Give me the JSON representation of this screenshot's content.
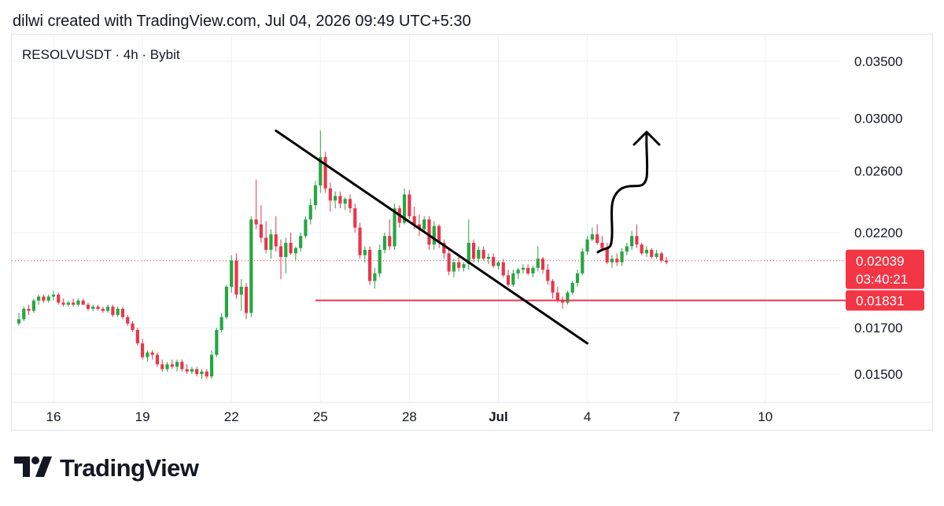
{
  "header": {
    "text": "dilwi created with TradingView.com, Jul 04, 2026 09:49 UTC+5:30"
  },
  "symbol": {
    "text": "RESOLVUSDT · 4h · Bybit"
  },
  "footer": {
    "brand": "TradingView",
    "logo_icon": "tradingview-logo-icon"
  },
  "colors": {
    "up": "#26a641",
    "down": "#e8364b",
    "price_line": "#e8364b",
    "badge": "#f23645",
    "grid": "#eef0f4",
    "drawing": "#000000"
  },
  "chart_data": {
    "type": "candlestick",
    "y_axis": {
      "ticks": [
        "0.03500",
        "0.03000",
        "0.02600",
        "0.02200",
        "0.01700",
        "0.01500"
      ],
      "tick_values": [
        0.035,
        0.03,
        0.026,
        0.022,
        0.017,
        0.015
      ],
      "scale": "log"
    },
    "x_axis": {
      "ticks": [
        {
          "label": "16",
          "date": "2026-06-16"
        },
        {
          "label": "19",
          "date": "2026-06-19"
        },
        {
          "label": "22",
          "date": "2026-06-22"
        },
        {
          "label": "25",
          "date": "2026-06-25"
        },
        {
          "label": "28",
          "date": "2026-06-28"
        },
        {
          "label": "Jul",
          "date": "2026-07-01",
          "bold": true
        },
        {
          "label": "4",
          "date": "2026-07-04"
        },
        {
          "label": "7",
          "date": "2026-07-07"
        },
        {
          "label": "10",
          "date": "2026-07-10"
        }
      ]
    },
    "grid": true,
    "candles_start": "2026-06-14T20:00",
    "candle_interval": "4h",
    "candles": [
      [
        0.0172,
        0.0177,
        0.0171,
        0.0174
      ],
      [
        0.0174,
        0.018,
        0.0173,
        0.0179
      ],
      [
        0.0179,
        0.0181,
        0.0176,
        0.0178
      ],
      [
        0.0178,
        0.0184,
        0.0177,
        0.0183
      ],
      [
        0.0183,
        0.0186,
        0.0181,
        0.0185
      ],
      [
        0.0185,
        0.0186,
        0.0182,
        0.0183
      ],
      [
        0.0183,
        0.0186,
        0.0182,
        0.0185
      ],
      [
        0.0185,
        0.0188,
        0.0183,
        0.0186
      ],
      [
        0.0186,
        0.0187,
        0.0181,
        0.0182
      ],
      [
        0.0182,
        0.0184,
        0.018,
        0.0181
      ],
      [
        0.0181,
        0.0183,
        0.018,
        0.0182
      ],
      [
        0.0182,
        0.0184,
        0.018,
        0.0181
      ],
      [
        0.0181,
        0.0184,
        0.018,
        0.0183
      ],
      [
        0.0183,
        0.0184,
        0.0181,
        0.0181
      ],
      [
        0.0181,
        0.0182,
        0.0178,
        0.0179
      ],
      [
        0.0179,
        0.0181,
        0.0178,
        0.018
      ],
      [
        0.018,
        0.0181,
        0.0178,
        0.0179
      ],
      [
        0.0179,
        0.018,
        0.0177,
        0.0178
      ],
      [
        0.0178,
        0.0181,
        0.0177,
        0.018
      ],
      [
        0.018,
        0.0181,
        0.0175,
        0.0176
      ],
      [
        0.0176,
        0.018,
        0.0175,
        0.0179
      ],
      [
        0.0179,
        0.018,
        0.0174,
        0.0175
      ],
      [
        0.0175,
        0.0176,
        0.0171,
        0.0172
      ],
      [
        0.0172,
        0.0173,
        0.0168,
        0.0169
      ],
      [
        0.0169,
        0.017,
        0.0162,
        0.0163
      ],
      [
        0.0163,
        0.0165,
        0.0156,
        0.0157
      ],
      [
        0.0157,
        0.016,
        0.0155,
        0.0159
      ],
      [
        0.0159,
        0.016,
        0.0156,
        0.0158
      ],
      [
        0.0158,
        0.0159,
        0.0153,
        0.0154
      ],
      [
        0.0154,
        0.0156,
        0.0151,
        0.0152
      ],
      [
        0.0152,
        0.0155,
        0.0151,
        0.0154
      ],
      [
        0.0154,
        0.0156,
        0.0152,
        0.0153
      ],
      [
        0.0153,
        0.0156,
        0.0151,
        0.0155
      ],
      [
        0.0155,
        0.0156,
        0.0151,
        0.0152
      ],
      [
        0.0152,
        0.0154,
        0.015,
        0.0151
      ],
      [
        0.0151,
        0.0153,
        0.015,
        0.0152
      ],
      [
        0.0152,
        0.0153,
        0.0149,
        0.015
      ],
      [
        0.015,
        0.0152,
        0.0148,
        0.0151
      ],
      [
        0.0151,
        0.0152,
        0.0148,
        0.0149
      ],
      [
        0.0149,
        0.016,
        0.0148,
        0.0158
      ],
      [
        0.0158,
        0.017,
        0.0157,
        0.0169
      ],
      [
        0.0169,
        0.0177,
        0.0168,
        0.0175
      ],
      [
        0.0175,
        0.0191,
        0.0174,
        0.019
      ],
      [
        0.019,
        0.0207,
        0.0187,
        0.0204
      ],
      [
        0.0204,
        0.0208,
        0.0184,
        0.0186
      ],
      [
        0.0186,
        0.0194,
        0.0178,
        0.019
      ],
      [
        0.019,
        0.0192,
        0.0174,
        0.0177
      ],
      [
        0.0177,
        0.023,
        0.0175,
        0.0228
      ],
      [
        0.0228,
        0.0254,
        0.0222,
        0.0225
      ],
      [
        0.0225,
        0.0237,
        0.0214,
        0.0217
      ],
      [
        0.0217,
        0.0227,
        0.0208,
        0.021
      ],
      [
        0.021,
        0.0222,
        0.0205,
        0.0219
      ],
      [
        0.0219,
        0.023,
        0.0209,
        0.0212
      ],
      [
        0.0212,
        0.0216,
        0.0194,
        0.0206
      ],
      [
        0.0206,
        0.0217,
        0.0197,
        0.0214
      ],
      [
        0.0214,
        0.022,
        0.0207,
        0.0208
      ],
      [
        0.0208,
        0.0212,
        0.0204,
        0.0211
      ],
      [
        0.0211,
        0.022,
        0.0209,
        0.0218
      ],
      [
        0.0218,
        0.023,
        0.0217,
        0.0228
      ],
      [
        0.0228,
        0.0241,
        0.0225,
        0.0237
      ],
      [
        0.0237,
        0.0253,
        0.0234,
        0.025
      ],
      [
        0.025,
        0.029,
        0.0245,
        0.027
      ],
      [
        0.027,
        0.0274,
        0.0245,
        0.0248
      ],
      [
        0.0248,
        0.0252,
        0.0233,
        0.024
      ],
      [
        0.024,
        0.0246,
        0.0235,
        0.0243
      ],
      [
        0.0243,
        0.0246,
        0.0235,
        0.0238
      ],
      [
        0.0238,
        0.0242,
        0.0234,
        0.0241
      ],
      [
        0.0241,
        0.0244,
        0.0232,
        0.0235
      ],
      [
        0.0235,
        0.0238,
        0.022,
        0.0223
      ],
      [
        0.0223,
        0.0226,
        0.0205,
        0.0207
      ],
      [
        0.0207,
        0.0212,
        0.0203,
        0.021
      ],
      [
        0.021,
        0.0212,
        0.0191,
        0.0193
      ],
      [
        0.0193,
        0.02,
        0.0189,
        0.0197
      ],
      [
        0.0197,
        0.0213,
        0.0195,
        0.021
      ],
      [
        0.021,
        0.022,
        0.0208,
        0.0218
      ],
      [
        0.0218,
        0.0228,
        0.021,
        0.0212
      ],
      [
        0.0212,
        0.0238,
        0.021,
        0.0235
      ],
      [
        0.0235,
        0.0237,
        0.0223,
        0.0226
      ],
      [
        0.0226,
        0.0248,
        0.0225,
        0.0244
      ],
      [
        0.0244,
        0.0247,
        0.0228,
        0.023
      ],
      [
        0.023,
        0.0236,
        0.0222,
        0.0225
      ],
      [
        0.0225,
        0.0231,
        0.0218,
        0.0222
      ],
      [
        0.0222,
        0.023,
        0.022,
        0.0228
      ],
      [
        0.0228,
        0.023,
        0.021,
        0.0213
      ],
      [
        0.0213,
        0.0227,
        0.021,
        0.0224
      ],
      [
        0.0224,
        0.0225,
        0.0211,
        0.0214
      ],
      [
        0.0214,
        0.0216,
        0.0205,
        0.0208
      ],
      [
        0.0208,
        0.0211,
        0.0196,
        0.0198
      ],
      [
        0.0198,
        0.0205,
        0.0195,
        0.0203
      ],
      [
        0.0203,
        0.0206,
        0.0198,
        0.02
      ],
      [
        0.02,
        0.0203,
        0.0198,
        0.0202
      ],
      [
        0.0202,
        0.0228,
        0.0199,
        0.0214
      ],
      [
        0.0214,
        0.0216,
        0.0203,
        0.0205
      ],
      [
        0.0205,
        0.0212,
        0.0203,
        0.021
      ],
      [
        0.021,
        0.0212,
        0.0204,
        0.0205
      ],
      [
        0.0205,
        0.0208,
        0.0202,
        0.0206
      ],
      [
        0.0206,
        0.0208,
        0.02,
        0.0201
      ],
      [
        0.0201,
        0.0204,
        0.0199,
        0.0203
      ],
      [
        0.0203,
        0.0205,
        0.0195,
        0.0196
      ],
      [
        0.0196,
        0.0199,
        0.019,
        0.0191
      ],
      [
        0.0191,
        0.0199,
        0.019,
        0.0197
      ],
      [
        0.0197,
        0.02,
        0.0194,
        0.0199
      ],
      [
        0.0199,
        0.0202,
        0.0197,
        0.02
      ],
      [
        0.02,
        0.0202,
        0.0196,
        0.0197
      ],
      [
        0.0197,
        0.0201,
        0.0195,
        0.02
      ],
      [
        0.02,
        0.0212,
        0.0198,
        0.0205
      ],
      [
        0.0205,
        0.0206,
        0.0197,
        0.0199
      ],
      [
        0.0199,
        0.0202,
        0.0191,
        0.0193
      ],
      [
        0.0193,
        0.0194,
        0.0184,
        0.0187
      ],
      [
        0.0187,
        0.019,
        0.0182,
        0.0183
      ],
      [
        0.0183,
        0.0185,
        0.0179,
        0.0182
      ],
      [
        0.0182,
        0.0188,
        0.0181,
        0.0187
      ],
      [
        0.0187,
        0.0193,
        0.0186,
        0.0192
      ],
      [
        0.0192,
        0.0199,
        0.019,
        0.0197
      ],
      [
        0.0197,
        0.0211,
        0.0196,
        0.0209
      ],
      [
        0.0209,
        0.0218,
        0.0207,
        0.0216
      ],
      [
        0.0216,
        0.0223,
        0.0215,
        0.0219
      ],
      [
        0.0219,
        0.0225,
        0.0213,
        0.0214
      ],
      [
        0.0214,
        0.0218,
        0.0209,
        0.0211
      ],
      [
        0.0211,
        0.0214,
        0.0202,
        0.0203
      ],
      [
        0.0203,
        0.0207,
        0.02,
        0.0205
      ],
      [
        0.0205,
        0.0208,
        0.0201,
        0.0203
      ],
      [
        0.0203,
        0.0211,
        0.0201,
        0.0209
      ],
      [
        0.0209,
        0.0214,
        0.0207,
        0.0212
      ],
      [
        0.0212,
        0.0221,
        0.021,
        0.0218
      ],
      [
        0.0218,
        0.0225,
        0.0211,
        0.0213
      ],
      [
        0.0213,
        0.0214,
        0.0207,
        0.0208
      ],
      [
        0.0208,
        0.0212,
        0.0206,
        0.021
      ],
      [
        0.021,
        0.0211,
        0.0205,
        0.0206
      ],
      [
        0.0206,
        0.021,
        0.0205,
        0.0208
      ],
      [
        0.0208,
        0.0209,
        0.0203,
        0.0204
      ],
      [
        0.0204,
        0.0206,
        0.0202,
        0.0203
      ]
    ],
    "current_price": {
      "label": "0.02039",
      "value": 0.02039,
      "countdown": "03:40:21"
    },
    "support": {
      "label": "0.01831",
      "value": 0.01831,
      "start": "2026-06-24T20:00"
    },
    "trendline": {
      "start": [
        "2026-06-23T12:00",
        0.029
      ],
      "end": [
        "2026-07-04T00:00",
        0.0163
      ]
    }
  }
}
